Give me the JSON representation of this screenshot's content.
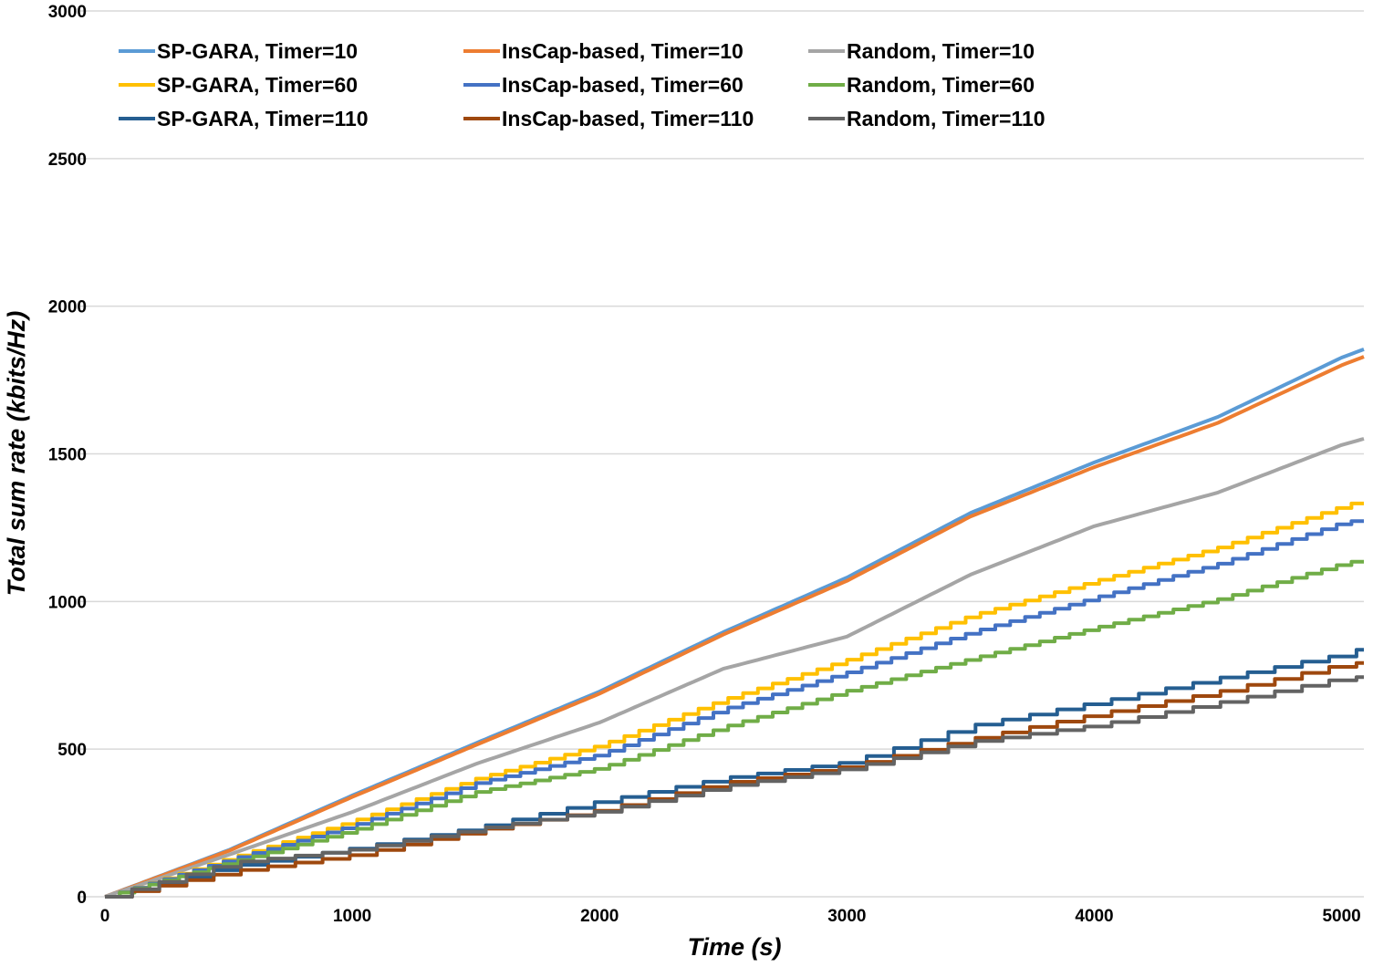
{
  "chart_data": {
    "type": "line",
    "title": "",
    "xlabel": "Time (s)",
    "ylabel": "Total sum rate (kbits/Hz)",
    "xlim": [
      0,
      5090
    ],
    "ylim": [
      0,
      3000
    ],
    "x_ticks": [
      "0",
      "1000",
      "2000",
      "3000",
      "4000",
      "5000"
    ],
    "y_ticks": [
      "0",
      "500",
      "1000",
      "1500",
      "2000",
      "2500",
      "3000"
    ],
    "grid": "horizontal",
    "legend_placement": "top-left",
    "x": [
      0,
      500,
      1000,
      1500,
      2000,
      2500,
      3000,
      3500,
      4000,
      4500,
      5000,
      5090
    ],
    "series": [
      {
        "name": "SP-GARA, Timer=10",
        "color": "#5B9BD5",
        "step": 10,
        "values": [
          0,
          158,
          343,
          520,
          695,
          896,
          1081,
          1300,
          1471,
          1625,
          1826,
          1854
        ]
      },
      {
        "name": "InsCap-based, Timer=10",
        "color": "#ED7D31",
        "step": 10,
        "values": [
          0,
          155,
          338,
          514,
          688,
          888,
          1070,
          1288,
          1455,
          1605,
          1800,
          1829
        ]
      },
      {
        "name": "Random, Timer=10",
        "color": "#A5A5A5",
        "step": 10,
        "values": [
          0,
          142,
          287,
          450,
          590,
          772,
          881,
          1091,
          1255,
          1369,
          1530,
          1551
        ]
      },
      {
        "name": "SP-GARA, Timer=60",
        "color": "#FFC000",
        "step": 60,
        "values": [
          0,
          130,
          256,
          400,
          513,
          668,
          803,
          952,
          1069,
          1183,
          1322,
          1344
        ]
      },
      {
        "name": "InsCap-based, Timer=60",
        "color": "#4472C4",
        "step": 60,
        "values": [
          0,
          125,
          241,
          385,
          482,
          636,
          760,
          896,
          1013,
          1128,
          1267,
          1279
        ]
      },
      {
        "name": "Random, Timer=60",
        "color": "#70AD47",
        "step": 60,
        "values": [
          0,
          115,
          225,
          355,
          436,
          575,
          698,
          806,
          911,
          1008,
          1128,
          1143
        ]
      },
      {
        "name": "SP-GARA, Timer=110",
        "color": "#255E91",
        "step": 110,
        "values": [
          0,
          102,
          164,
          235,
          324,
          402,
          457,
          580,
          658,
          741,
          822,
          844
        ]
      },
      {
        "name": "InsCap-based, Timer=110",
        "color": "#9E480E",
        "step": 110,
        "values": [
          0,
          85,
          142,
          225,
          294,
          386,
          442,
          535,
          618,
          695,
          788,
          794
        ]
      },
      {
        "name": "Random, Timer=110",
        "color": "#636363",
        "step": 110,
        "values": [
          0,
          115,
          160,
          230,
          290,
          375,
          435,
          525,
          581,
          658,
          741,
          745
        ]
      }
    ]
  }
}
